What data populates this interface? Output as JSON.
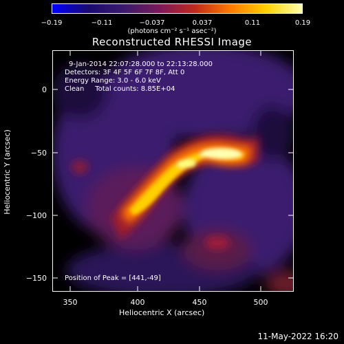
{
  "colorbar": {
    "ticks": [
      "−0.19",
      "−0.11",
      "−0.037",
      "0.037",
      "0.11",
      "0.19"
    ],
    "units": "(photons cm⁻² s⁻¹ asec⁻²)"
  },
  "title": "Reconstructed RHESSI Image",
  "info": {
    "time": "9-Jan-2014 22:07:28.000 to 22:13:28.000",
    "detectors": "Detectors: 3F 4F 5F 6F 7F 8F, Att 0",
    "energy": "Energy Range: 3.0 - 6.0 keV",
    "clean": "Clean     Total counts: 8.85E+04",
    "peak": "Position of Peak = [441,-49]"
  },
  "axes": {
    "xlabel": "Heliocentric X (arcsec)",
    "ylabel": "Heliocentric Y (arcsec)",
    "xticks": [
      "350",
      "400",
      "450",
      "500"
    ],
    "yticks": [
      "0",
      "−50",
      "−100",
      "−150"
    ]
  },
  "timestamp": "11-May-2022 16:20",
  "colors": {
    "cmap": [
      "#0000ff",
      "#1a0a6e",
      "#3a1a6e",
      "#7a1a5a",
      "#c02a1a",
      "#ff7a00",
      "#ffd000",
      "#ffffb0"
    ]
  }
}
